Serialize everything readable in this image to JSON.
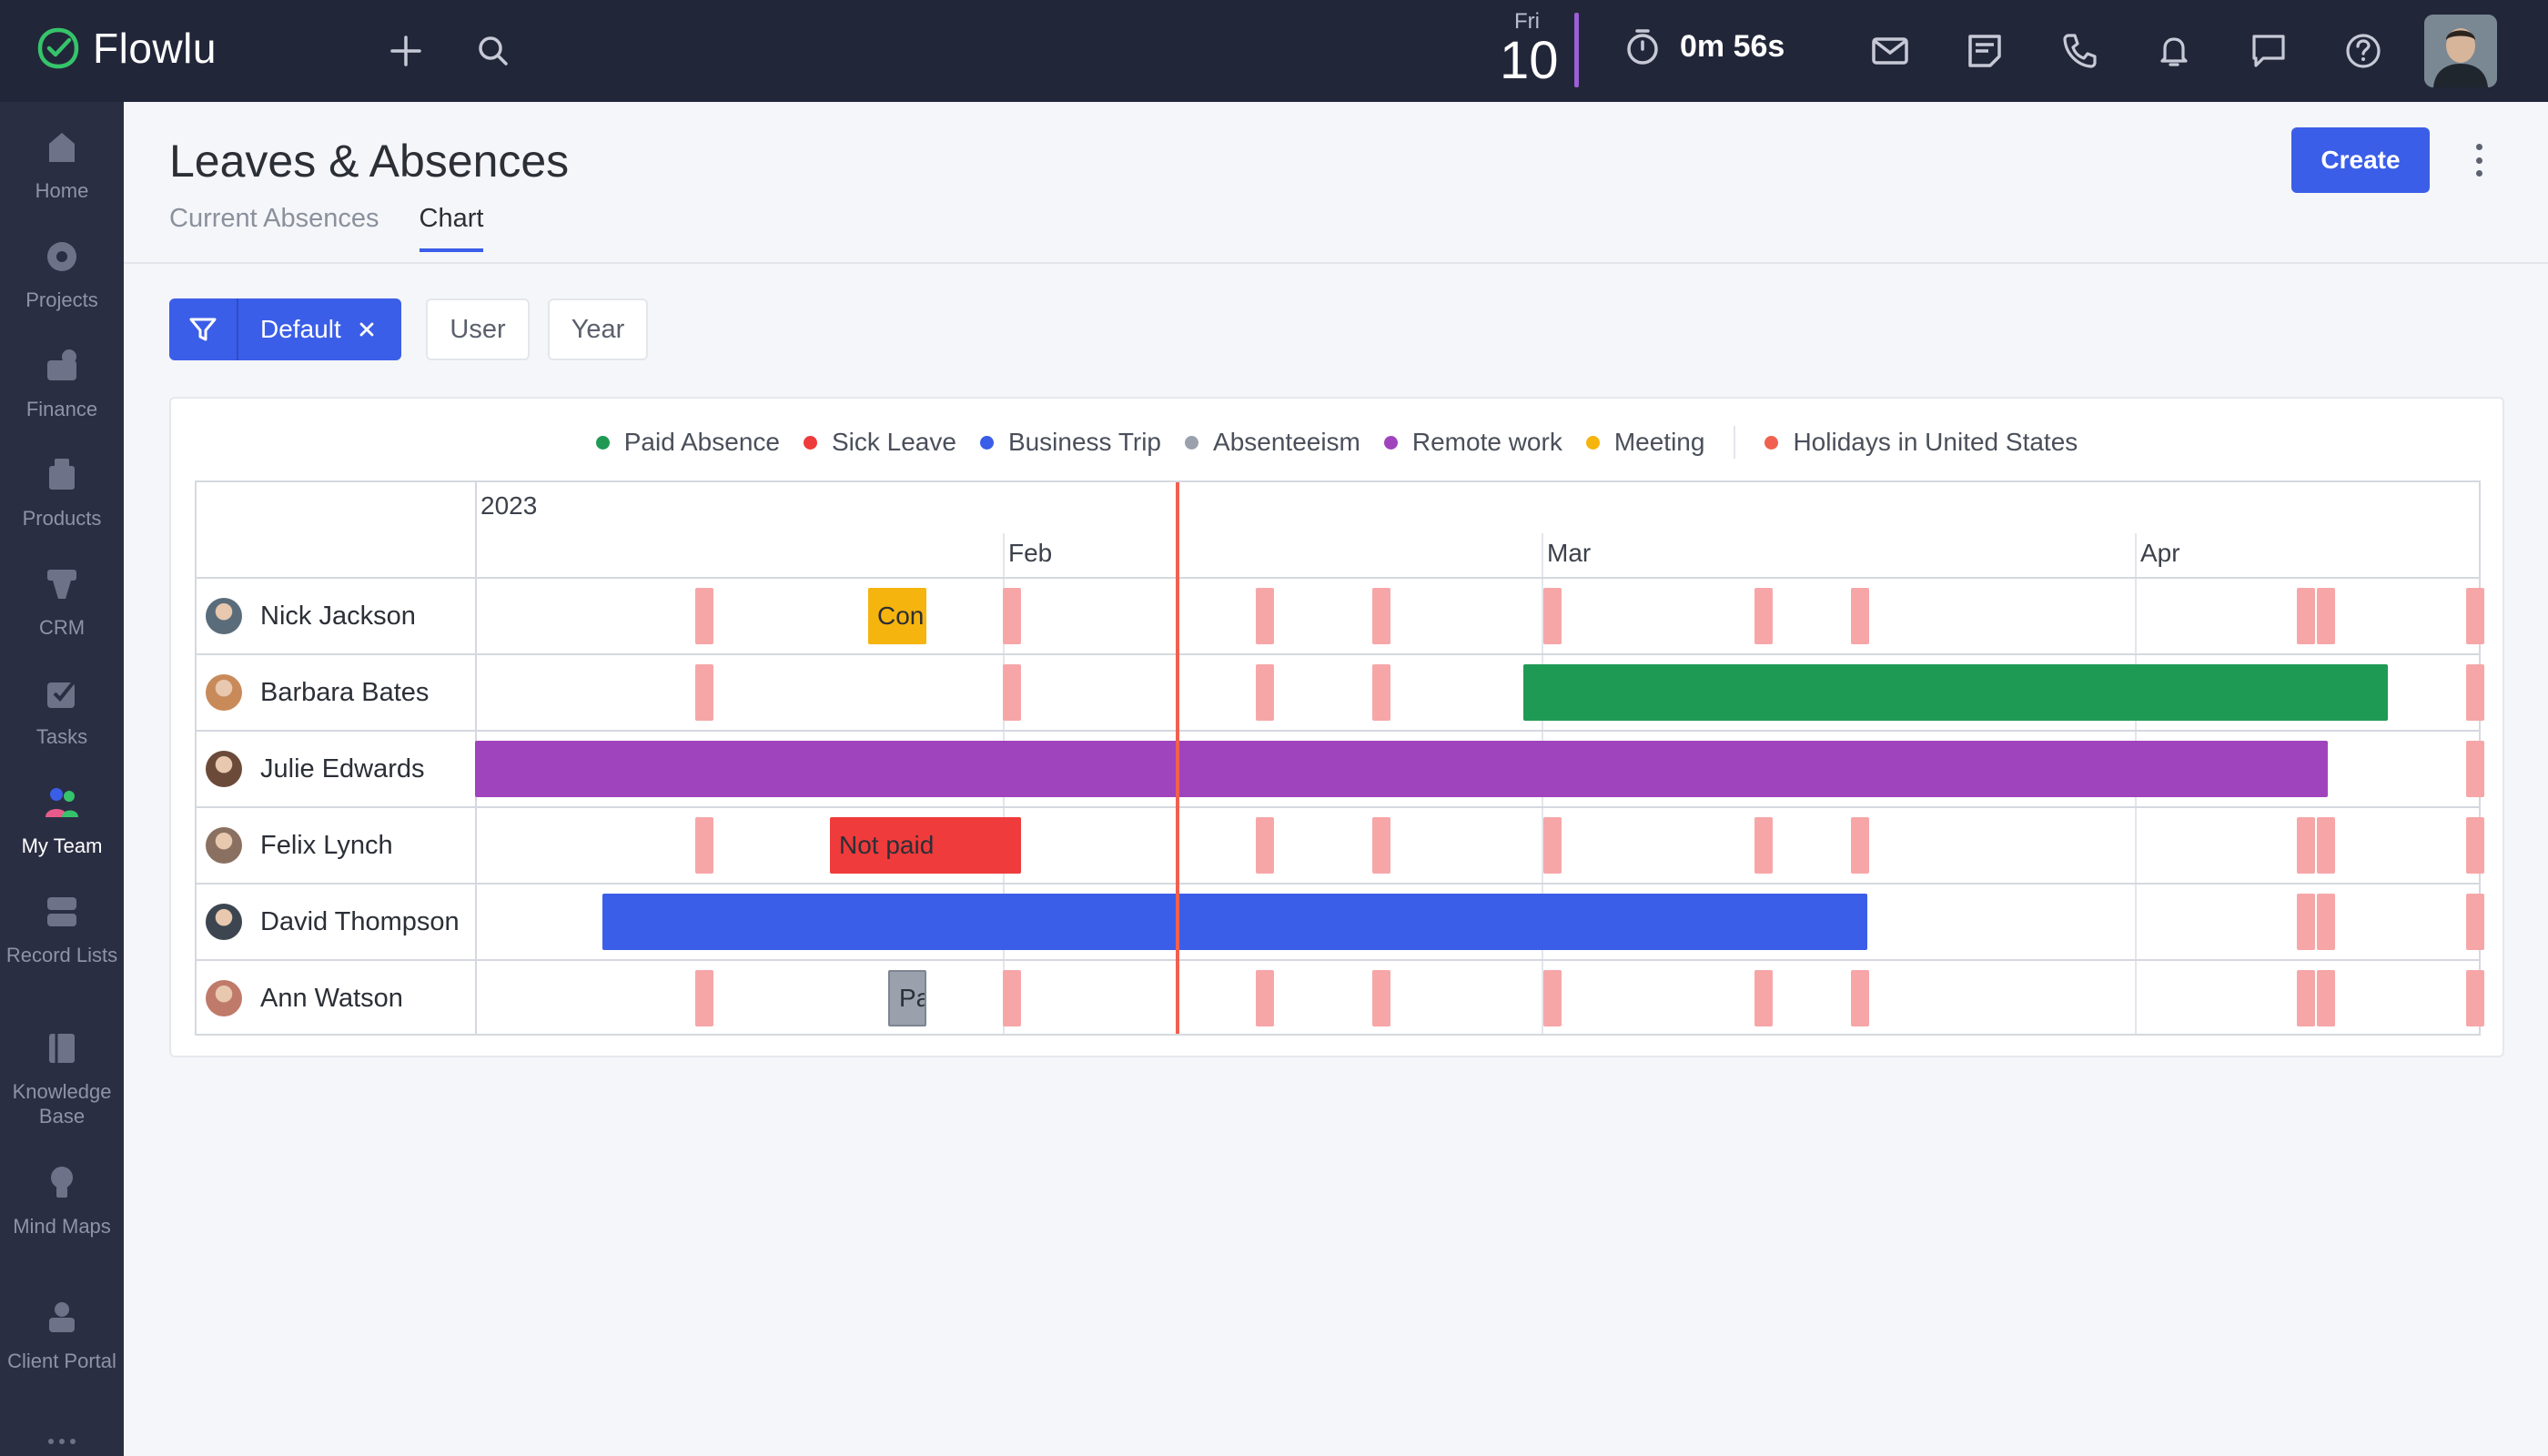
{
  "app": {
    "name": "Flowlu"
  },
  "topbar": {
    "date_day": "Fri",
    "date_num": "10",
    "timer": "0m 56s",
    "icons": [
      "plus-icon",
      "search-icon",
      "timer-icon",
      "mail-icon",
      "notes-icon",
      "phone-icon",
      "bell-icon",
      "chat-icon",
      "help-icon"
    ]
  },
  "sidebar": {
    "items": [
      {
        "label": "Home",
        "icon": "home-icon"
      },
      {
        "label": "Projects",
        "icon": "projects-icon"
      },
      {
        "label": "Finance",
        "icon": "finance-icon"
      },
      {
        "label": "Products",
        "icon": "products-icon"
      },
      {
        "label": "CRM",
        "icon": "crm-icon"
      },
      {
        "label": "Tasks",
        "icon": "tasks-icon"
      },
      {
        "label": "My Team",
        "icon": "team-icon",
        "active": true
      },
      {
        "label": "Record Lists",
        "icon": "record-lists-icon"
      },
      {
        "label": "Knowledge Base",
        "icon": "knowledge-icon"
      },
      {
        "label": "Mind Maps",
        "icon": "mind-maps-icon"
      },
      {
        "label": "Client Portal",
        "icon": "client-portal-icon"
      }
    ]
  },
  "page": {
    "title": "Leaves & Absences",
    "tabs": [
      {
        "label": "Current Absences"
      },
      {
        "label": "Chart"
      }
    ],
    "create_label": "Create"
  },
  "filters": {
    "active_filter": "Default",
    "user_label": "User",
    "year_label": "Year"
  },
  "legend": {
    "items": [
      {
        "label": "Paid Absence",
        "color": "#1f9a55"
      },
      {
        "label": "Sick Leave",
        "color": "#ef3b3b"
      },
      {
        "label": "Business Trip",
        "color": "#3b5ee8"
      },
      {
        "label": "Absenteeism",
        "color": "#9aa1ad"
      },
      {
        "label": "Remote work",
        "color": "#a044bd"
      },
      {
        "label": "Meeting",
        "color": "#f6b40e"
      }
    ],
    "holidays_label": "Holidays in United States",
    "holidays_color": "#f0614f"
  },
  "timeline": {
    "year": "2023",
    "months": [
      "Feb",
      "Mar",
      "Apr"
    ]
  },
  "chart_data": {
    "type": "table",
    "users": [
      {
        "name": "Nick Jackson",
        "avatar_color": "#5a6c7a",
        "bars": [
          {
            "type": "Meeting",
            "label": "Con",
            "color": "#f6b40e"
          }
        ]
      },
      {
        "name": "Barbara Bates",
        "avatar_color": "#c98a5a",
        "bars": [
          {
            "type": "Paid Absence",
            "label": "",
            "color": "#1f9a55"
          }
        ]
      },
      {
        "name": "Julie Edwards",
        "avatar_color": "#6b4a3a",
        "bars": [
          {
            "type": "Remote work",
            "label": "",
            "color": "#a044bd"
          }
        ]
      },
      {
        "name": "Felix Lynch",
        "avatar_color": "#8a7060",
        "bars": [
          {
            "type": "Sick Leave",
            "label": "Not paid",
            "color": "#ef3b3b"
          }
        ]
      },
      {
        "name": "David Thompson",
        "avatar_color": "#3d4650",
        "bars": [
          {
            "type": "Business Trip",
            "label": "",
            "color": "#3b5ee8"
          }
        ]
      },
      {
        "name": "Ann Watson",
        "avatar_color": "#c07a6a",
        "bars": [
          {
            "type": "Absenteeism",
            "label": "Pa",
            "color": "#9aa1ad"
          }
        ]
      }
    ]
  }
}
